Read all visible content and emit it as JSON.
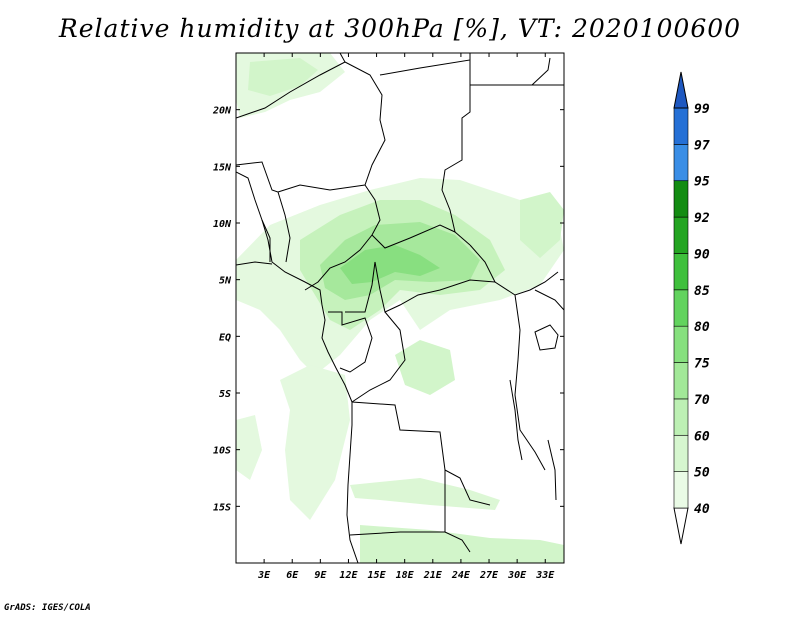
{
  "title": "Relative humidity at 300hPa [%], VT: 2020100600",
  "credit": "GrADS: IGES/COLA",
  "map": {
    "lon_range": [
      0,
      35
    ],
    "lat_range": [
      -20,
      25
    ],
    "lon_ticks": [
      "3E",
      "6E",
      "9E",
      "12E",
      "15E",
      "18E",
      "21E",
      "24E",
      "27E",
      "30E",
      "33E"
    ],
    "lon_tick_values": [
      3,
      6,
      9,
      12,
      15,
      18,
      21,
      24,
      27,
      30,
      33
    ],
    "lat_ticks": [
      "20N",
      "15N",
      "10N",
      "5N",
      "EQ",
      "5S",
      "10S",
      "15S"
    ],
    "lat_tick_values": [
      20,
      15,
      10,
      5,
      0,
      -5,
      -10,
      -15
    ]
  },
  "colorbar": {
    "levels": [
      "40",
      "50",
      "60",
      "70",
      "75",
      "80",
      "85",
      "90",
      "92",
      "95",
      "97",
      "99"
    ],
    "colors": [
      "#ffffff",
      "#eafbe6",
      "#d6f6cf",
      "#bdf0b4",
      "#a2e898",
      "#86e07e",
      "#62d35e",
      "#3fc03c",
      "#24a522",
      "#138c12",
      "#3a8ee6",
      "#2570d6",
      "#1e58c0"
    ]
  },
  "colors": {
    "coast": "#000000",
    "frame": "#000000"
  }
}
